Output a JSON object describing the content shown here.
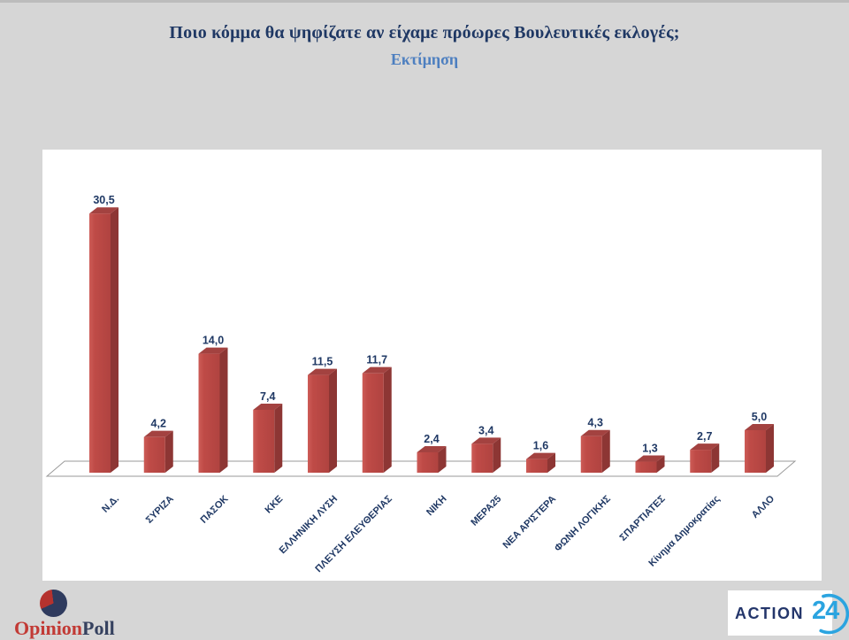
{
  "header": {
    "title": "Ποιο κόμμα θα ψηφίζατε αν είχαμε πρόωρες Βουλευτικές εκλογές;",
    "subtitle": "Εκτίμηση"
  },
  "colors": {
    "background": "#d6d6d6",
    "panel": "#ffffff",
    "bar_front": "#bc4744",
    "bar_side": "#8d3634",
    "bar_top": "#a34240",
    "label_navy": "#1f3864",
    "title_navy": "#1f3864",
    "subtitle_blue": "#4d7fc0",
    "floor_stroke": "#9a9a9a",
    "opinion_red": "#c23a35",
    "poll_navy": "#35415f",
    "action24_navy": "#24366b",
    "action24_blue": "#2ba4e0"
  },
  "chart_data": {
    "type": "bar",
    "style": "3d-clustered-column",
    "title": "Ποιο κόμμα θα ψηφίζατε αν είχαμε πρόωρες Βουλευτικές εκλογές;",
    "subtitle": "Εκτίμηση",
    "categories": [
      "Ν.Δ.",
      "ΣΥΡΙΖΑ",
      "ΠΑΣΟΚ",
      "ΚΚΕ",
      "ΕΛΛΗΝΙΚΗ ΛΥΣΗ",
      "ΠΛΕΥΣΗ ΕΛΕΥΘΕΡΙΑΣ",
      "ΝΙΚΗ",
      "ΜΕΡΑ25",
      "ΝΕΑ ΑΡΙΣΤΕΡΑ",
      "ΦΩΝΗ ΛΟΓΙΚΗΣ",
      "ΣΠΑΡΤΙΑΤΕΣ",
      "Κίνημα Δημοκρατίας",
      "ΑΛΛΟ"
    ],
    "values": [
      30.5,
      4.2,
      14.0,
      7.4,
      11.5,
      11.7,
      2.4,
      3.4,
      1.6,
      4.3,
      1.3,
      2.7,
      5.0
    ],
    "value_labels": [
      "30,5",
      "4,2",
      "14,0",
      "7,4",
      "11,5",
      "11,7",
      "2,4",
      "3,4",
      "1,6",
      "4,3",
      "1,3",
      "2,7",
      "5,0"
    ],
    "ylim": [
      0,
      33
    ],
    "xlabel": "",
    "ylabel": "",
    "grid": false,
    "legend": false,
    "data_labels": true,
    "bar_color": "#bc4744",
    "data_label_color": "#1f3864"
  },
  "footer": {
    "opinionpoll": {
      "word1": "Opinion",
      "word2": "Poll"
    },
    "action24": {
      "word": "ACTION",
      "number": "24"
    }
  }
}
